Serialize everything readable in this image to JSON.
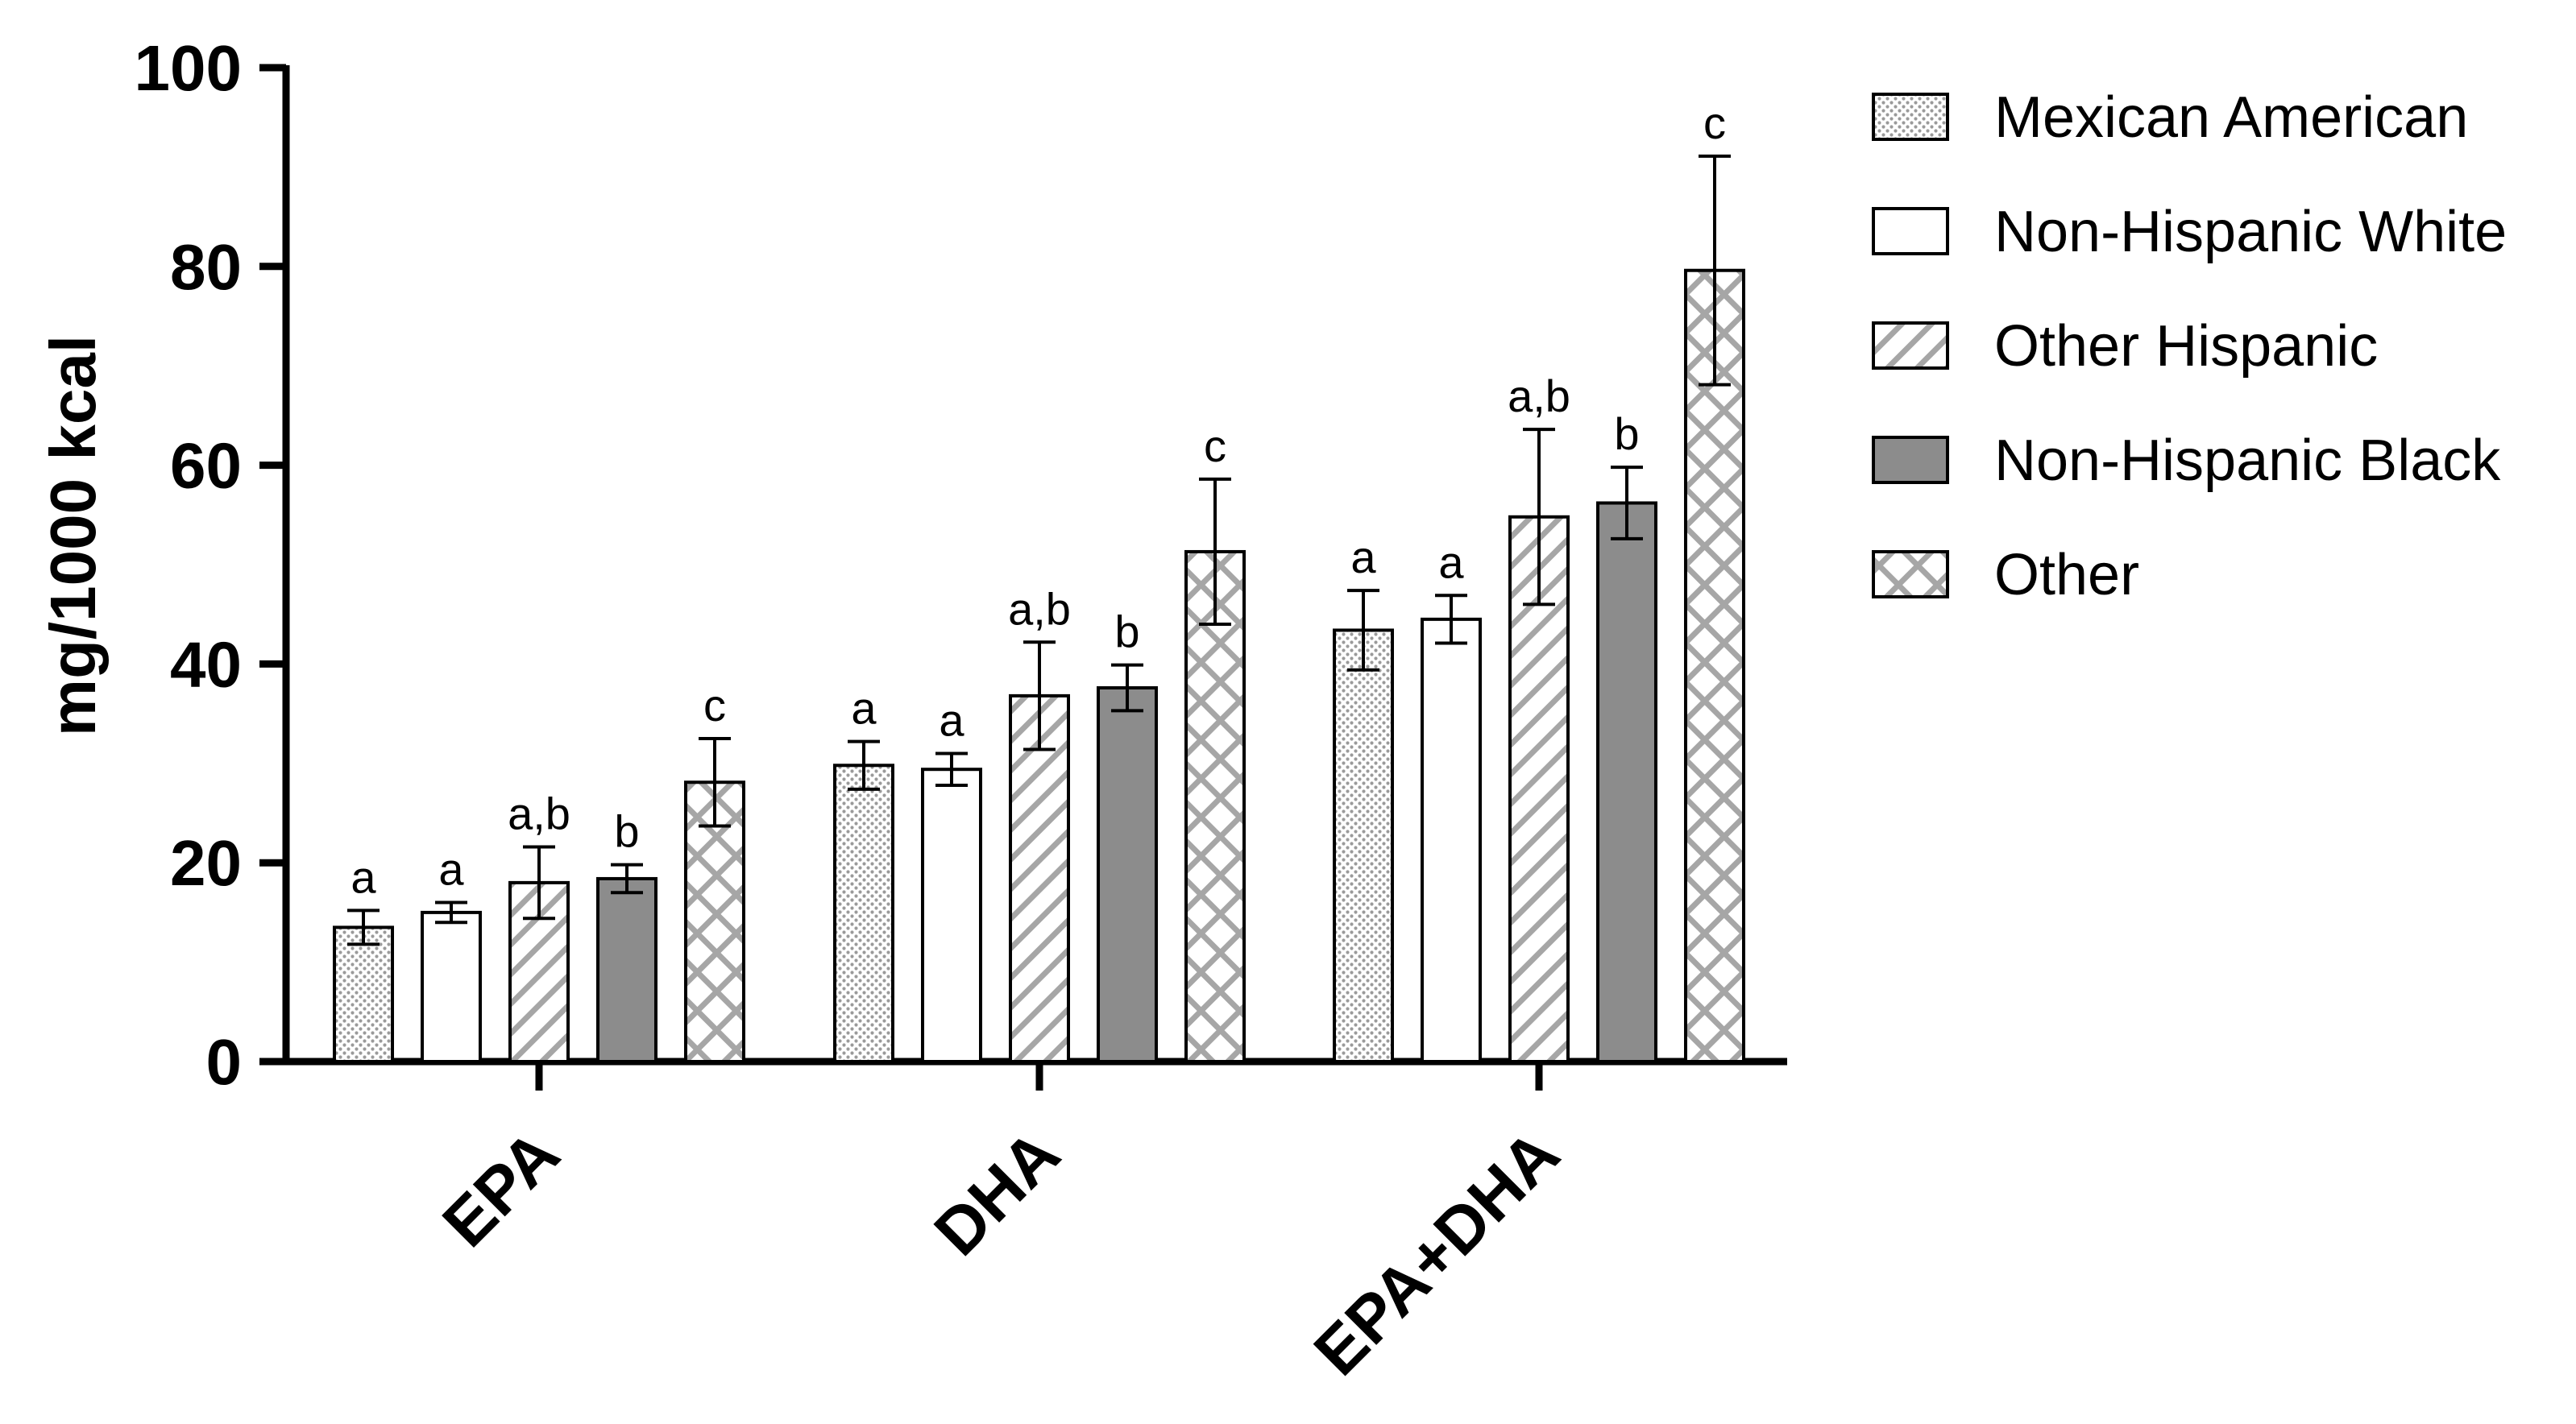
{
  "chart_data": {
    "type": "bar",
    "ylabel": "mg/1000 kcal",
    "ylim": [
      0,
      100
    ],
    "yticks": [
      0,
      20,
      40,
      60,
      80,
      100
    ],
    "grid": false,
    "legend_position": "right",
    "categories": [
      "EPA",
      "DHA",
      "EPA+DHA"
    ],
    "series": [
      {
        "name": "Mexican American",
        "pattern": "dots",
        "values": [
          13.5,
          29.8,
          43.4
        ],
        "errors": [
          1.7,
          2.4,
          4.0
        ],
        "labels": [
          "a",
          "a",
          "a"
        ]
      },
      {
        "name": "Non-Hispanic White",
        "pattern": "plain",
        "values": [
          15.0,
          29.4,
          44.5
        ],
        "errors": [
          1.0,
          1.6,
          2.4
        ],
        "labels": [
          "a",
          "a",
          "a"
        ]
      },
      {
        "name": "Other Hispanic",
        "pattern": "diagonal",
        "values": [
          18.0,
          36.8,
          54.8
        ],
        "errors": [
          3.6,
          5.4,
          8.8
        ],
        "labels": [
          "a,b",
          "a,b",
          "a,b"
        ]
      },
      {
        "name": "Non-Hispanic Black",
        "pattern": "solid-gray",
        "values": [
          18.4,
          37.6,
          56.2
        ],
        "errors": [
          1.4,
          2.3,
          3.6
        ],
        "labels": [
          "b",
          "b",
          "b"
        ]
      },
      {
        "name": "Other",
        "pattern": "crosshatch",
        "values": [
          28.1,
          51.3,
          79.6
        ],
        "errors": [
          4.4,
          7.3,
          11.5
        ],
        "labels": [
          "c",
          "c",
          "c"
        ]
      }
    ],
    "colors": {
      "solid_fill": "#8c8c8c",
      "hatch_stroke": "#a6a6a6",
      "dot_fill": "#9a9a9a",
      "outline": "#000000"
    }
  }
}
